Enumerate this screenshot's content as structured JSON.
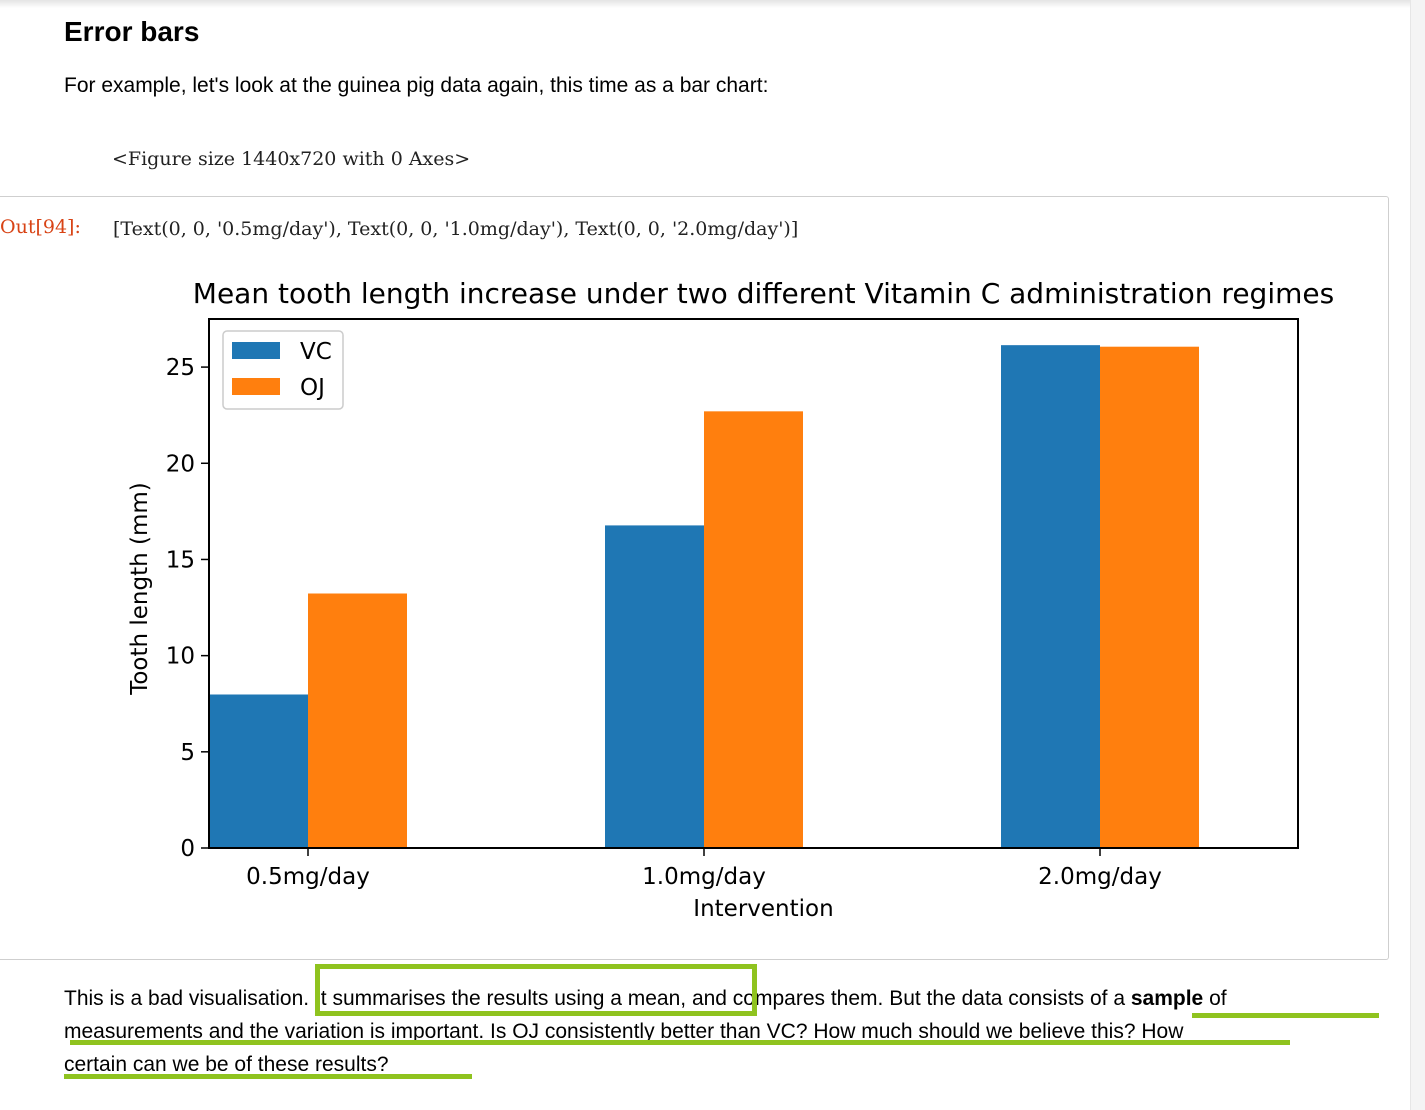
{
  "section": {
    "heading": "Error bars"
  },
  "intro": "For example, let's look at the guinea pig data again, this time as a bar chart:",
  "figure_note": "<Figure size 1440x720 with 0 Axes>",
  "output_cell": {
    "prompt": "Out[94]:",
    "text": "[Text(0, 0, '0.5mg/day'), Text(0, 0, '1.0mg/day'), Text(0, 0, '2.0mg/day')]"
  },
  "chart_data": {
    "type": "bar",
    "title": "Mean tooth length increase under two different Vitamin C administration regimes",
    "xlabel": "Intervention",
    "ylabel": "Tooth length (mm)",
    "categories": [
      "0.5mg/day",
      "1.0mg/day",
      "2.0mg/day"
    ],
    "series": [
      {
        "name": "VC",
        "values": [
          7.98,
          16.77,
          26.14
        ],
        "color": "#1f77b4"
      },
      {
        "name": "OJ",
        "values": [
          13.23,
          22.7,
          26.06
        ],
        "color": "#ff7f0e"
      }
    ],
    "ylim": [
      0,
      27.5
    ],
    "yticks": [
      0,
      5,
      10,
      15,
      20,
      25
    ],
    "legend": "top-left",
    "grid": false
  },
  "paragraph": {
    "line1_a": "This is a bad visualisation. It summarises the results using a mean, and compares them. But the data consists of a ",
    "line1_bold": "sample",
    "line1_b": " of",
    "line2": "measurements and the variation is important. Is OJ consistently better than VC? How much should we believe this? How",
    "line3": "certain can we be of these results?"
  },
  "annotation_colors": {
    "highlight": "#8fc31f"
  }
}
